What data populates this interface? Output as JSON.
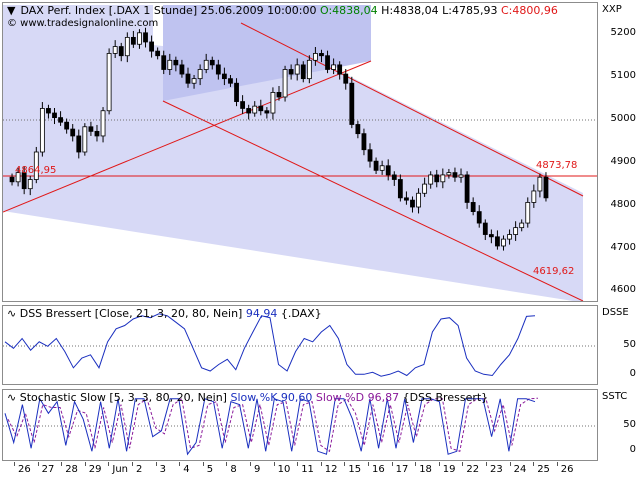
{
  "colors": {
    "channel_fill": "#d2d4f4",
    "channel_fill_dark": "#bfc3f0",
    "trend_red": "#e01818",
    "candle_black": "#000000",
    "dss_blue": "#1a2fbf",
    "slow_k_blue": "#1a2fbf",
    "slow_d_purple": "#8a1a9a",
    "green": "#008000",
    "dotted_grid": "#606060"
  },
  "main_chart": {
    "title": "DAX Perf. Index [.DAX  1 Stunde]",
    "datetime": "25.06.2009 10:00:00",
    "open_label": "O:4838,04",
    "high_label": "H:4838,04",
    "low_label": "L:4785,93",
    "close_label": "C:4800,96",
    "watermark": "© www.tradesignalonline.com",
    "axis_symbol": "XXP",
    "y_ticks": [
      "5200",
      "5100",
      "5000",
      "4900",
      "4800",
      "4700",
      "4600"
    ],
    "level_left_label": "4864,95",
    "level_right_label": "4873,78",
    "channel_low_label": "4619,62"
  },
  "dss_panel": {
    "title": "DSS Bressert [Close, 21, 3, 20, 80, Nein]",
    "value": "94,94",
    "source": "{.DAX}",
    "axis_label": "DSSE",
    "y_ticks": [
      "50",
      "0"
    ]
  },
  "stoch_panel": {
    "title": "Stochastic Slow [5, 3, 3, 80, 20, Nein]",
    "k_label": "Slow %K 90,60",
    "d_label": "Slow %D 96,87",
    "source": "{DSS Bressert}",
    "axis_label": "SSTC",
    "y_ticks": [
      "50",
      "0"
    ]
  },
  "x_axis": {
    "labels": [
      "26",
      "27",
      "28",
      "29",
      "Jun",
      "2",
      "3",
      "4",
      "5",
      "8",
      "9",
      "10",
      "11",
      "12",
      "15",
      "16",
      "17",
      "18",
      "19",
      "22",
      "23",
      "24",
      "25",
      "26"
    ]
  },
  "chart_data": [
    {
      "type": "candlestick",
      "title": "DAX Perf. Index [.DAX  1 Stunde]",
      "y_range": [
        4575,
        5225
      ],
      "close": [
        4835,
        4855,
        4820,
        4840,
        4900,
        4995,
        4985,
        4975,
        4965,
        4950,
        4935,
        4900,
        4955,
        4945,
        4935,
        4990,
        5115,
        5130,
        5110,
        5150,
        5135,
        5160,
        5140,
        5120,
        5110,
        5080,
        5100,
        5090,
        5070,
        5050,
        5060,
        5080,
        5100,
        5090,
        5070,
        5060,
        5050,
        5010,
        4995,
        4985,
        5000,
        4990,
        4985,
        5030,
        5020,
        5080,
        5070,
        5090,
        5060,
        5100,
        5115,
        5110,
        5080,
        5090,
        5070,
        5050,
        4960,
        4940,
        4905,
        4880,
        4860,
        4870,
        4850,
        4840,
        4800,
        4795,
        4780,
        4810,
        4830,
        4850,
        4835,
        4850,
        4855,
        4845,
        4850,
        4790,
        4770,
        4745,
        4720,
        4715,
        4695,
        4710,
        4720,
        4735,
        4745,
        4790,
        4815,
        4845,
        4800
      ]
    },
    {
      "type": "line",
      "title": "DSS Bressert [Close, 21, 3, 20, 80, Nein]",
      "y_range": [
        -10,
        110
      ],
      "y_ticks": [
        0,
        50
      ],
      "series": [
        {
          "name": "DSS Bressert",
          "values": [
            55,
            45,
            60,
            42,
            55,
            48,
            60,
            40,
            15,
            30,
            35,
            15,
            55,
            75,
            80,
            90,
            95,
            92,
            98,
            95,
            85,
            75,
            45,
            15,
            10,
            20,
            28,
            12,
            45,
            70,
            95,
            92,
            20,
            10,
            40,
            60,
            55,
            70,
            80,
            60,
            20,
            5,
            5,
            8,
            2,
            5,
            10,
            3,
            15,
            20,
            70,
            90,
            92,
            80,
            30,
            10,
            5,
            3,
            20,
            35,
            60,
            94,
            95
          ]
        }
      ]
    },
    {
      "type": "line",
      "title": "Stochastic Slow [5, 3, 3, 80, 20, Nein]",
      "y_range": [
        -10,
        110
      ],
      "y_ticks": [
        0,
        50
      ],
      "series": [
        {
          "name": "Slow %K",
          "values": [
            70,
            20,
            85,
            10,
            95,
            70,
            90,
            15,
            90,
            60,
            5,
            90,
            10,
            95,
            5,
            95,
            95,
            30,
            40,
            95,
            95,
            0,
            20,
            95,
            90,
            10,
            90,
            85,
            10,
            95,
            5,
            95,
            90,
            5,
            95,
            90,
            5,
            0,
            95,
            95,
            60,
            5,
            95,
            10,
            95,
            10,
            95,
            20,
            95,
            95,
            90,
            0,
            5,
            95,
            95,
            95,
            30,
            95,
            5,
            95,
            95,
            90
          ]
        },
        {
          "name": "Slow %D",
          "values": [
            60,
            30,
            70,
            20,
            85,
            80,
            80,
            30,
            75,
            70,
            10,
            80,
            20,
            85,
            10,
            85,
            95,
            45,
            35,
            85,
            95,
            10,
            15,
            85,
            90,
            20,
            80,
            85,
            20,
            85,
            15,
            85,
            90,
            15,
            85,
            90,
            15,
            5,
            85,
            95,
            70,
            15,
            85,
            20,
            85,
            20,
            85,
            30,
            85,
            95,
            95,
            10,
            5,
            85,
            95,
            95,
            40,
            85,
            15,
            85,
            95,
            96
          ]
        }
      ]
    }
  ]
}
